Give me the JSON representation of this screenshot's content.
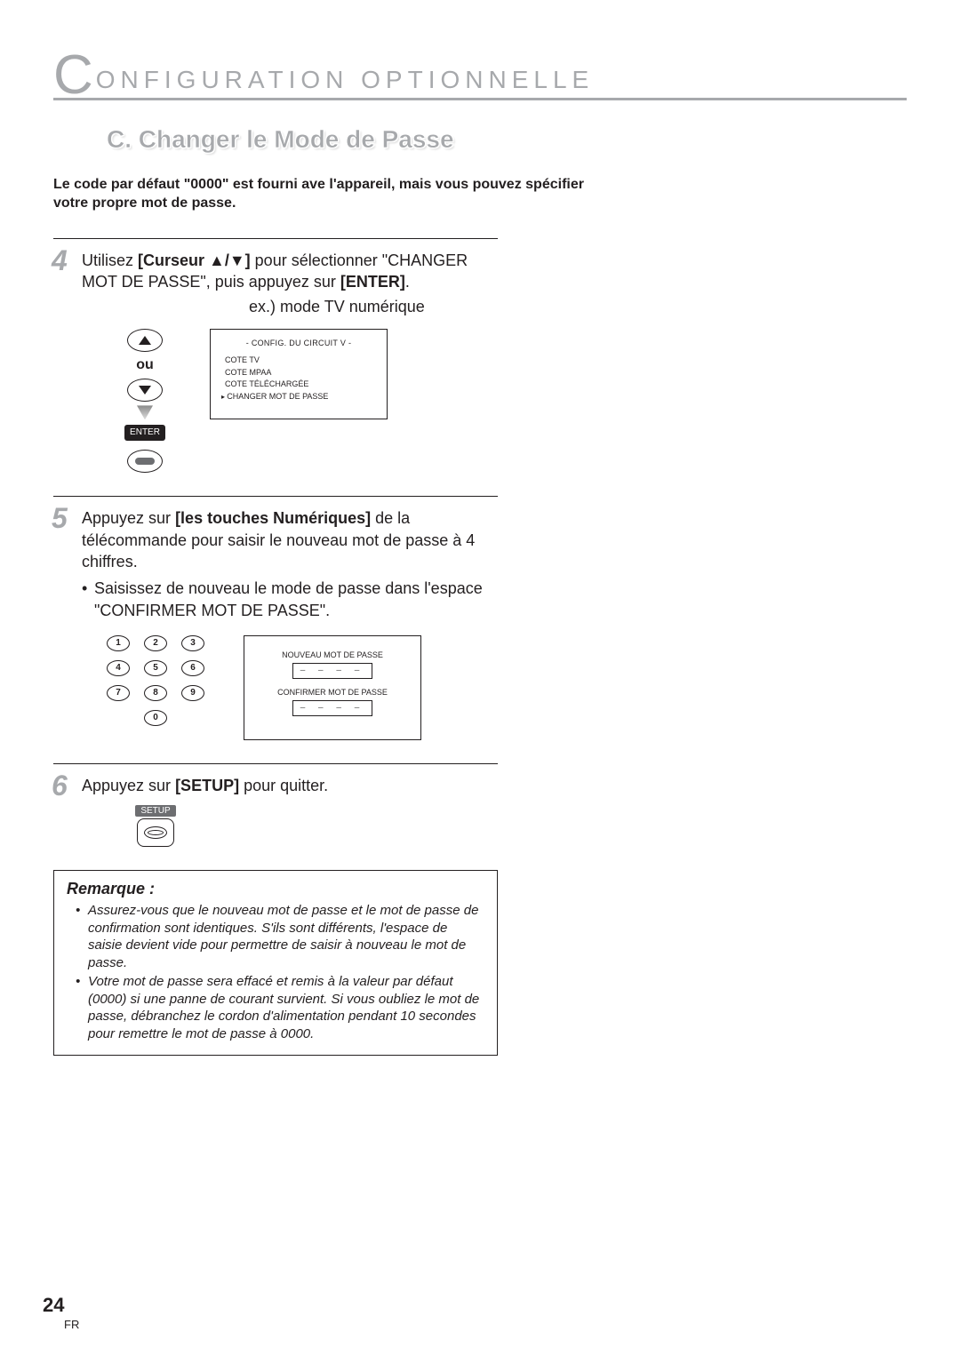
{
  "header": {
    "big_letter": "C",
    "title": "ONFIGURATION   OPTIONNELLE"
  },
  "sub_title": "C.   Changer le Mode de Passe",
  "intro": "Le code par défaut \"0000\" est fourni ave l'appareil, mais vous pouvez spécifier votre propre mot de passe.",
  "step4": {
    "no": "4",
    "pre": "Utilisez ",
    "bold1": "[Curseur ▲/▼]",
    "mid": " pour sélectionner \"CHANGER MOT DE PASSE\", puis appuyez sur ",
    "bold2": "[ENTER]",
    "tail": ".",
    "caption": "ex.)  mode TV numérique",
    "ou": "ou",
    "enter_label": "ENTER",
    "screen": {
      "title": "- CONFIG. DU CIRCUIT V -",
      "lines": [
        "COTE TV",
        "COTE MPAA",
        "COTE TÉLÉCHARGÉE"
      ],
      "selected": "CHANGER MOT DE PASSE"
    }
  },
  "step5": {
    "no": "5",
    "pre": "Appuyez sur ",
    "bold1": "[les touches Numériques]",
    "mid": " de la télécommande pour saisir le nouveau mot de passe à 4 chiffres.",
    "bullet": "Saisissez de nouveau le mode de passe dans l'espace \"CONFIRMER MOT DE PASSE\".",
    "keys": [
      "1",
      "2",
      "3",
      "4",
      "5",
      "6",
      "7",
      "8",
      "9",
      "0"
    ],
    "screen": {
      "label1": "NOUVEAU MOT DE PASSE",
      "dashes": "–  –  –  –",
      "label2": "CONFIRMER MOT DE PASSE"
    }
  },
  "step6": {
    "no": "6",
    "pre": "Appuyez sur ",
    "bold1": "[SETUP]",
    "tail": " pour quitter.",
    "setup_label": "SETUP"
  },
  "note": {
    "title": "Remarque :",
    "items": [
      "Assurez-vous que le nouveau mot de passe et le mot de passe de confirmation sont identiques. S'ils sont différents, l'espace de saisie devient vide pour permettre de saisir à nouveau le mot de passe.",
      "Votre mot de passe sera effacé et remis à la valeur par défaut (0000) si une panne de courant survient. Si vous oubliez le mot de passe, débranchez le cordon d'alimentation pendant 10 secondes pour remettre le mot de passe à 0000."
    ]
  },
  "footer": {
    "page": "24",
    "lang": "FR"
  }
}
